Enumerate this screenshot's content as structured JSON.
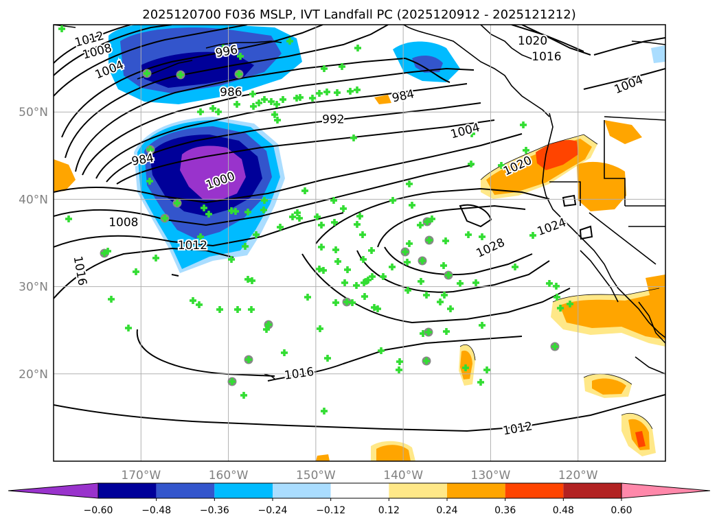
{
  "title": "2025120700 F036 MSLP, IVT Landfall PC (2025120912 - 2025121212)",
  "map": {
    "lon_range": [
      -180,
      -110
    ],
    "lat_range": [
      10,
      60
    ],
    "lon_ticks": [
      {
        "value": -170,
        "label": "170°W"
      },
      {
        "value": -160,
        "label": "160°W"
      },
      {
        "value": -150,
        "label": "150°W"
      },
      {
        "value": -140,
        "label": "140°W"
      },
      {
        "value": -130,
        "label": "130°W"
      },
      {
        "value": -120,
        "label": "120°W"
      }
    ],
    "lat_ticks": [
      {
        "value": 50,
        "label": "50°N"
      },
      {
        "value": 40,
        "label": "40°N"
      },
      {
        "value": 30,
        "label": "30°N"
      },
      {
        "value": 20,
        "label": "20°N"
      }
    ],
    "grid": true,
    "ocean_color": "#ffffff",
    "contour_color": "#000000",
    "station_marker_color": "#33dd33",
    "station_highlight_color": "#888888"
  },
  "contour_labels": [
    {
      "text": "1012",
      "lon": -175.9,
      "lat": 58.3,
      "angle": -15
    },
    {
      "text": "1008",
      "lon": -175.0,
      "lat": 56.9,
      "angle": -15
    },
    {
      "text": "1004",
      "lon": -173.6,
      "lat": 54.8,
      "angle": -22
    },
    {
      "text": "996",
      "lon": -160.2,
      "lat": 56.9,
      "angle": -10
    },
    {
      "text": "986",
      "lon": -159.7,
      "lat": 52.2,
      "angle": 0
    },
    {
      "text": "984",
      "lon": -140.0,
      "lat": 51.8,
      "angle": -12
    },
    {
      "text": "992",
      "lon": -148.0,
      "lat": 49.1,
      "angle": 0
    },
    {
      "text": "1020",
      "lon": -125.2,
      "lat": 58.1,
      "angle": 0
    },
    {
      "text": "1016",
      "lon": -123.6,
      "lat": 56.3,
      "angle": 0
    },
    {
      "text": "1004",
      "lon": -114.2,
      "lat": 53.1,
      "angle": -22
    },
    {
      "text": "1004",
      "lon": -132.9,
      "lat": 47.8,
      "angle": -15
    },
    {
      "text": "1020",
      "lon": -126.9,
      "lat": 43.8,
      "angle": -25
    },
    {
      "text": "984",
      "lon": -169.8,
      "lat": 44.5,
      "angle": -10
    },
    {
      "text": "1000",
      "lon": -160.9,
      "lat": 42.1,
      "angle": -20
    },
    {
      "text": "1008",
      "lon": -172.0,
      "lat": 37.3,
      "angle": 0
    },
    {
      "text": "1012",
      "lon": -164.1,
      "lat": 34.7,
      "angle": 0
    },
    {
      "text": "1016",
      "lon": -177.0,
      "lat": 31.8,
      "angle": 80
    },
    {
      "text": "1024",
      "lon": -123.0,
      "lat": 36.8,
      "angle": -20
    },
    {
      "text": "1028",
      "lon": -130.0,
      "lat": 34.4,
      "angle": -25
    },
    {
      "text": "1016",
      "lon": -151.9,
      "lat": 20.0,
      "angle": -8
    },
    {
      "text": "1012",
      "lon": -126.9,
      "lat": 13.7,
      "angle": -10
    }
  ],
  "colorbar": {
    "colors": [
      "#9933cc",
      "#000099",
      "#3355cc",
      "#00bbff",
      "#aaddff",
      "#ffffff",
      "#ffe888",
      "#ffa500",
      "#ff4400",
      "#b22222",
      "#ff88aa"
    ],
    "tick_labels": [
      "−0.60",
      "−0.48",
      "−0.36",
      "−0.24",
      "−0.12",
      "0.12",
      "0.24",
      "0.36",
      "0.48",
      "0.60"
    ]
  }
}
